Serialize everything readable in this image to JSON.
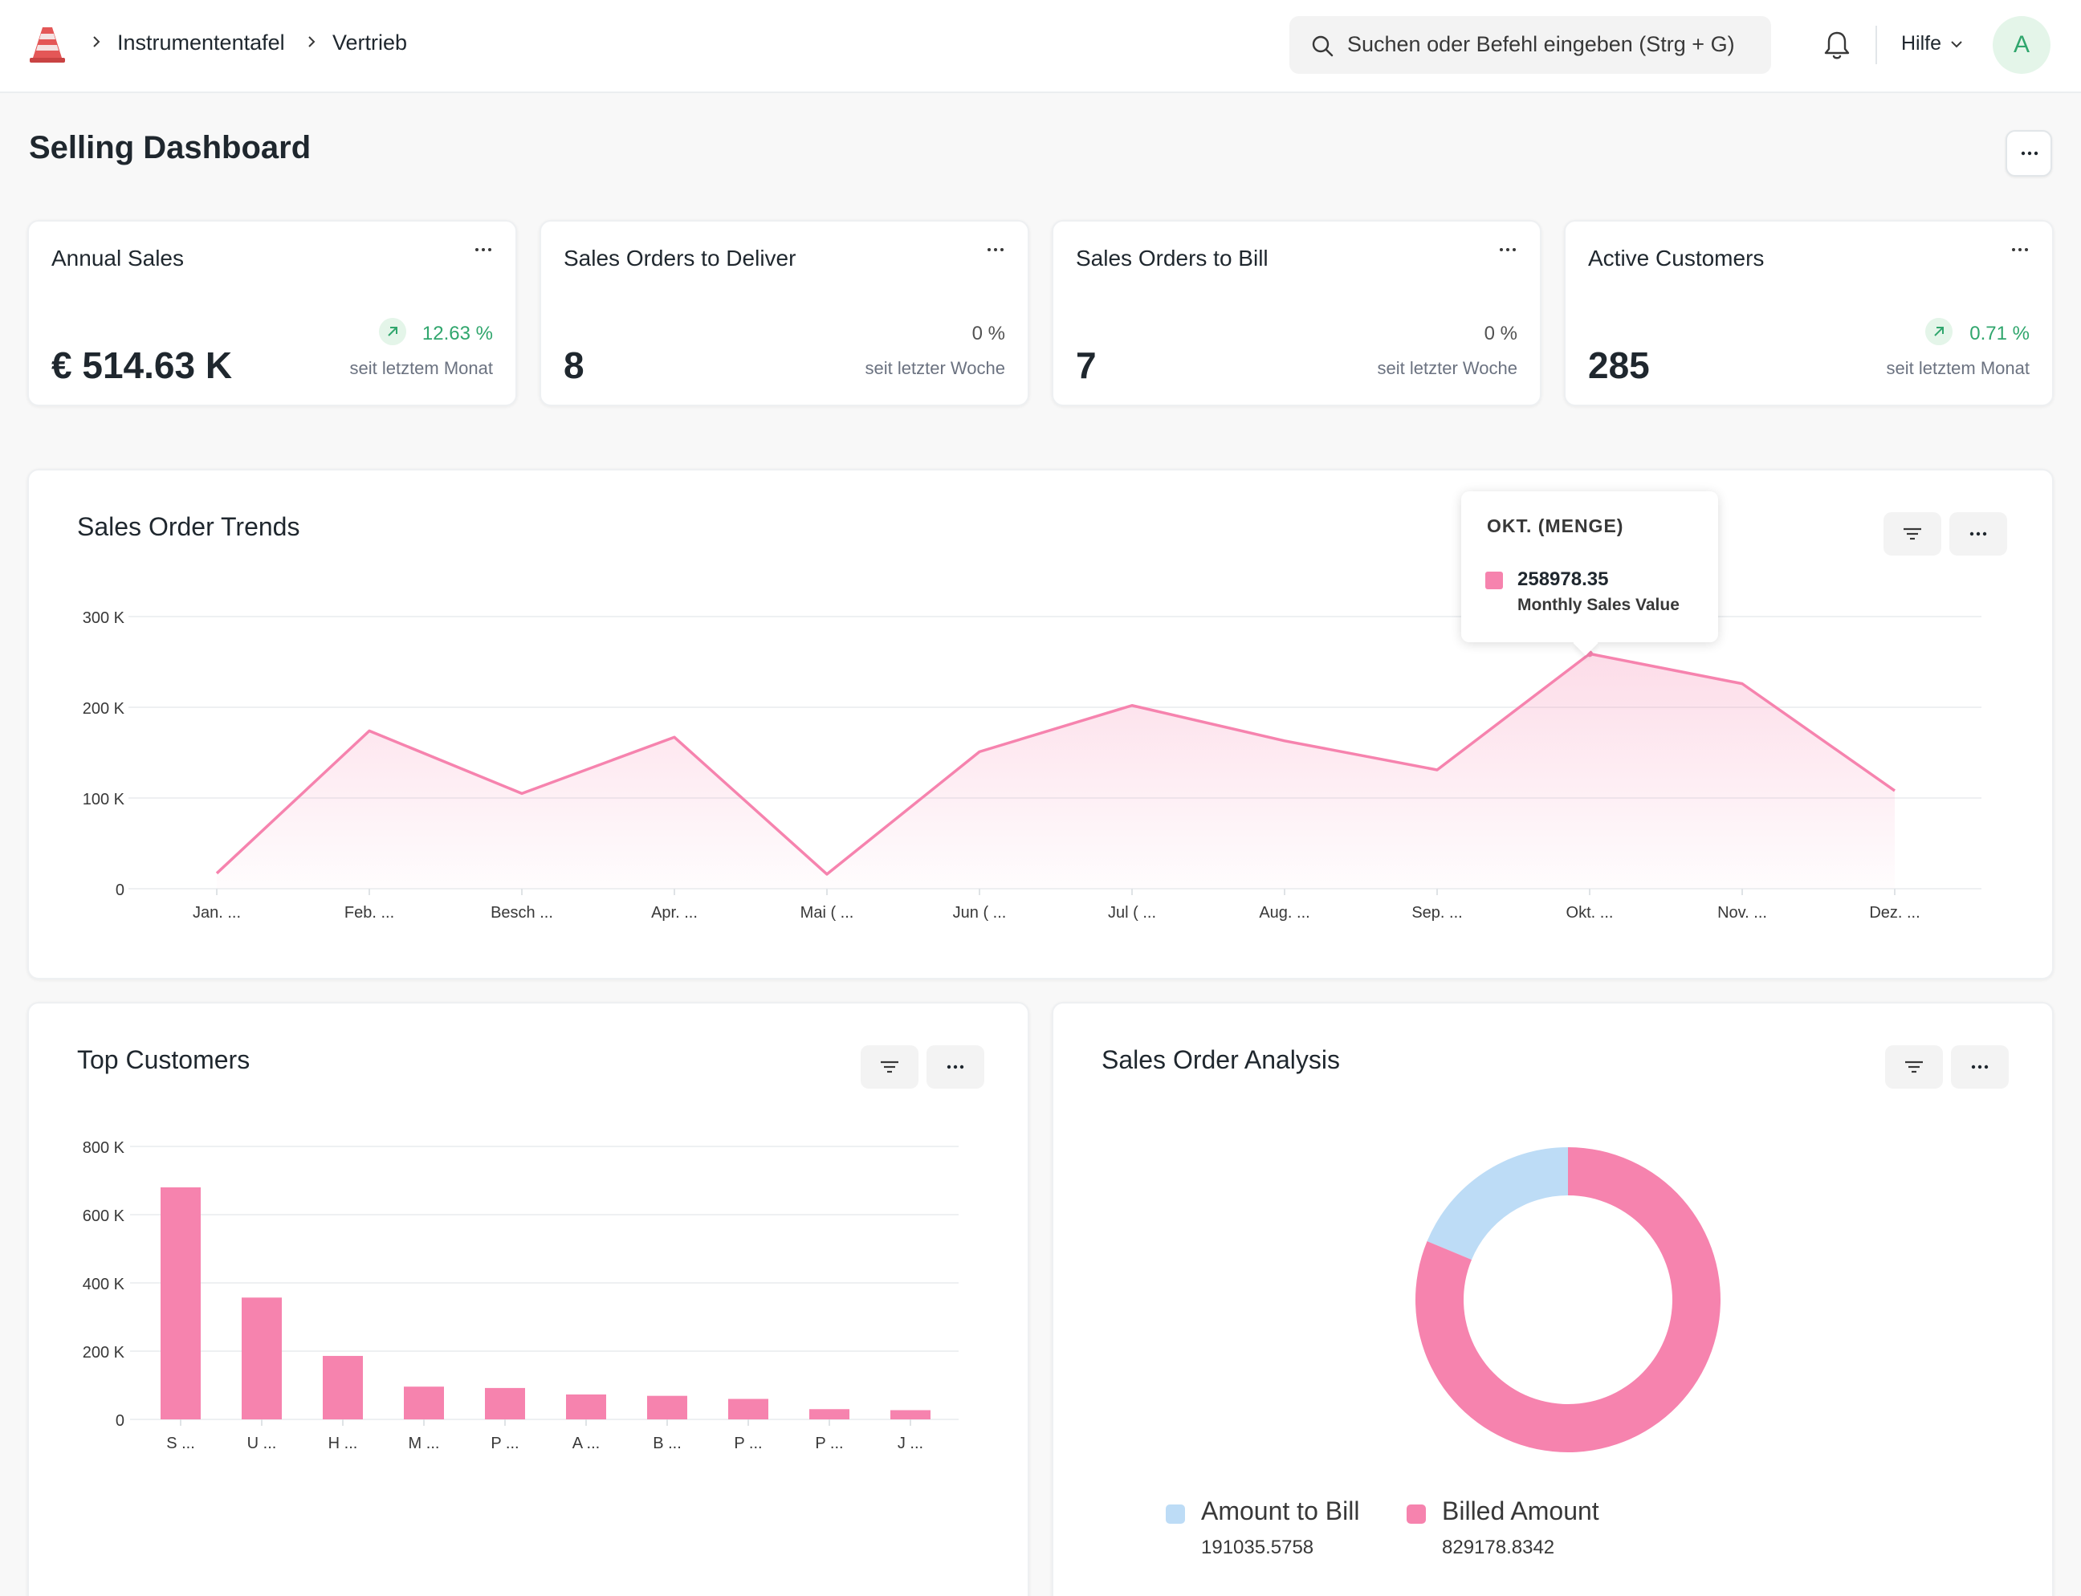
{
  "navbar": {
    "breadcrumbs": [
      "Instrumententafel",
      "Vertrieb"
    ],
    "search_placeholder": "Suchen oder Befehl eingeben (Strg + G)",
    "help_label": "Hilfe",
    "avatar_initial": "A"
  },
  "page": {
    "title": "Selling Dashboard"
  },
  "number_cards": [
    {
      "title": "Annual Sales",
      "value": "€ 514.63 K",
      "percent": "12.63 %",
      "trend": "up",
      "since": "seit letztem Monat"
    },
    {
      "title": "Sales Orders to Deliver",
      "value": "8",
      "percent": "0 %",
      "trend": "flat",
      "since": "seit letzter Woche"
    },
    {
      "title": "Sales Orders to Bill",
      "value": "7",
      "percent": "0 %",
      "trend": "flat",
      "since": "seit letzter Woche"
    },
    {
      "title": "Active Customers",
      "value": "285",
      "percent": "0.71 %",
      "trend": "up",
      "since": "seit letztem Monat"
    }
  ],
  "colors": {
    "accent_pink": "#f683ae",
    "light_blue": "#bddcf6",
    "positive_green": "#30a66d"
  },
  "chart_data": [
    {
      "type": "line",
      "title": "Sales Order Trends",
      "categories": [
        "Jan. ...",
        "Feb. ...",
        "Besch ...",
        "Apr. ...",
        "Mai ( ...",
        "Jun ( ...",
        "Jul ( ...",
        "Aug. ...",
        "Sep. ...",
        "Okt. ...",
        "Nov. ...",
        "Dez. ..."
      ],
      "series": [
        {
          "name": "Monthly Sales Value",
          "values": [
            17000,
            174000,
            105000,
            167000,
            16000,
            151000,
            202000,
            163000,
            131000,
            258978.35,
            226000,
            108000
          ]
        }
      ],
      "y_ticks": [
        "0",
        "100 K",
        "200 K",
        "300 K"
      ],
      "ylim": [
        0,
        300000
      ],
      "tooltip": {
        "title": "OKT. (MENGE)",
        "value": "258978.35",
        "series": "Monthly Sales Value"
      }
    },
    {
      "type": "bar",
      "title": "Top Customers",
      "categories": [
        "S ...",
        "U ...",
        "H ...",
        "M ...",
        "P ...",
        "A ...",
        "B ...",
        "P ...",
        "P ...",
        "J ..."
      ],
      "values": [
        680000,
        357000,
        186000,
        96000,
        92000,
        73000,
        69000,
        60000,
        30000,
        27000
      ],
      "y_ticks": [
        "0",
        "200 K",
        "400 K",
        "600 K",
        "800 K"
      ],
      "ylim": [
        0,
        800000
      ]
    },
    {
      "type": "pie",
      "title": "Sales Order Analysis",
      "donut": true,
      "labels": [
        "Amount to Bill",
        "Billed Amount"
      ],
      "values": [
        191035.5758,
        829178.8342
      ],
      "value_labels": [
        "191035.5758",
        "829178.8342"
      ]
    }
  ]
}
